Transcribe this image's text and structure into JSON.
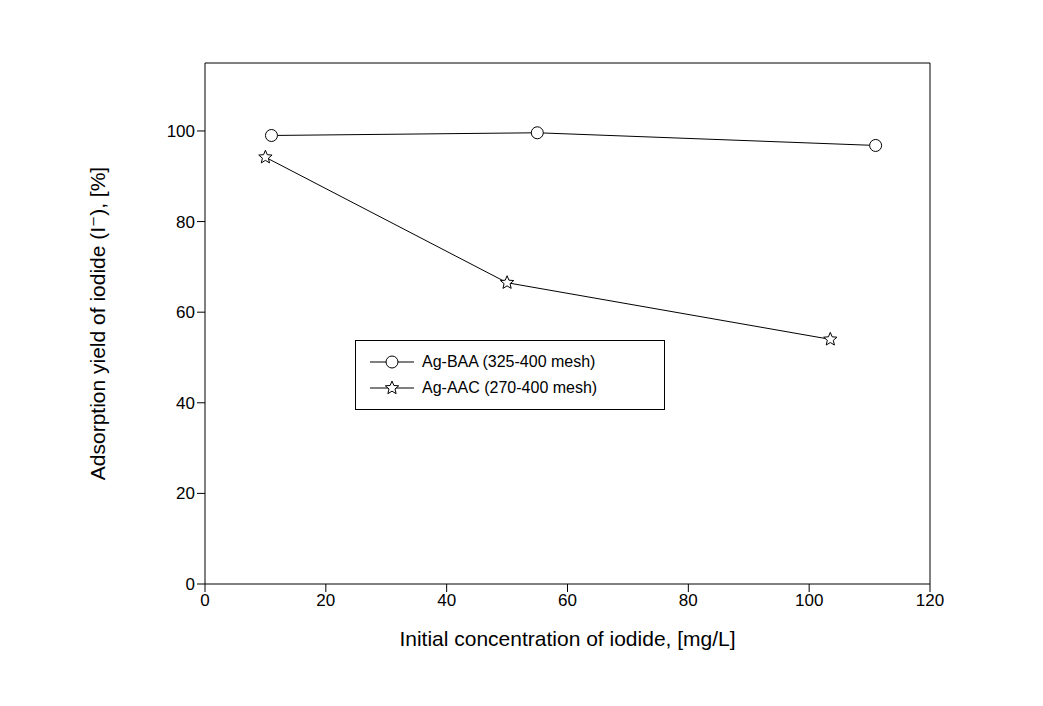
{
  "chart_data": {
    "type": "line",
    "x_label": "Initial concentration of iodide, [mg/L]",
    "y_label": "Adsorption yield of iodide (I⁻), [%]",
    "xlim": [
      0,
      120
    ],
    "xticks": [
      0,
      20,
      40,
      60,
      80,
      100,
      120
    ],
    "ylim": [
      0,
      115
    ],
    "yticks": [
      0,
      20,
      40,
      60,
      80,
      100
    ],
    "grid": false,
    "legend": "center",
    "series": [
      {
        "name": "Ag-BAA (325-400 mesh)",
        "color": "#000000",
        "marker": "circle",
        "line_style": "solid",
        "x": [
          11,
          55,
          111
        ],
        "values": [
          99,
          99.6,
          96.8
        ]
      },
      {
        "name": "Ag-AAC (270-400 mesh)",
        "color": "#000000",
        "marker": "star",
        "line_style": "solid",
        "x": [
          10,
          50,
          103.5
        ],
        "values": [
          94.2,
          66.5,
          54
        ]
      }
    ]
  }
}
